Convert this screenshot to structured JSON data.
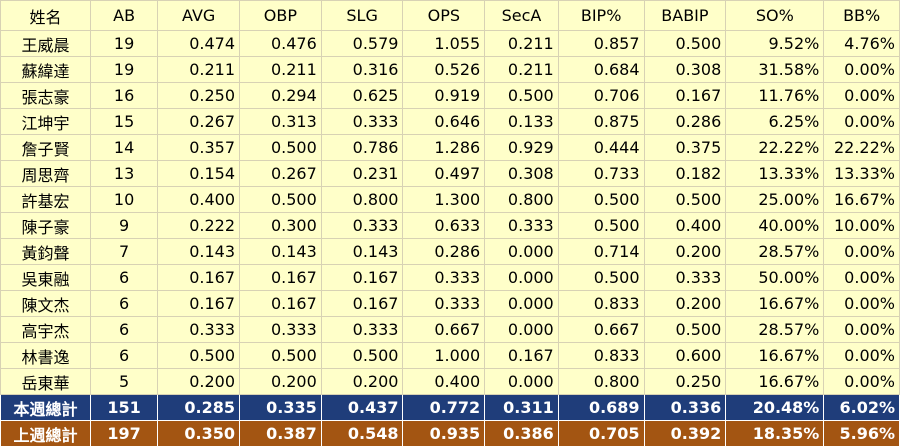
{
  "columns": [
    "姓名",
    "AB",
    "AVG",
    "OBP",
    "SLG",
    "OPS",
    "SecA",
    "BIP%",
    "BABIP",
    "SO%",
    "BB%"
  ],
  "players": [
    {
      "name": "王威晨",
      "ab": "19",
      "avg": "0.474",
      "obp": "0.476",
      "slg": "0.579",
      "ops": "1.055",
      "seca": "0.211",
      "bip": "0.857",
      "babip": "0.500",
      "so": "9.52%",
      "bb": "4.76%"
    },
    {
      "name": "蘇緯達",
      "ab": "19",
      "avg": "0.211",
      "obp": "0.211",
      "slg": "0.316",
      "ops": "0.526",
      "seca": "0.211",
      "bip": "0.684",
      "babip": "0.308",
      "so": "31.58%",
      "bb": "0.00%"
    },
    {
      "name": "張志豪",
      "ab": "16",
      "avg": "0.250",
      "obp": "0.294",
      "slg": "0.625",
      "ops": "0.919",
      "seca": "0.500",
      "bip": "0.706",
      "babip": "0.167",
      "so": "11.76%",
      "bb": "0.00%"
    },
    {
      "name": "江坤宇",
      "ab": "15",
      "avg": "0.267",
      "obp": "0.313",
      "slg": "0.333",
      "ops": "0.646",
      "seca": "0.133",
      "bip": "0.875",
      "babip": "0.286",
      "so": "6.25%",
      "bb": "0.00%"
    },
    {
      "name": "詹子賢",
      "ab": "14",
      "avg": "0.357",
      "obp": "0.500",
      "slg": "0.786",
      "ops": "1.286",
      "seca": "0.929",
      "bip": "0.444",
      "babip": "0.375",
      "so": "22.22%",
      "bb": "22.22%"
    },
    {
      "name": "周思齊",
      "ab": "13",
      "avg": "0.154",
      "obp": "0.267",
      "slg": "0.231",
      "ops": "0.497",
      "seca": "0.308",
      "bip": "0.733",
      "babip": "0.182",
      "so": "13.33%",
      "bb": "13.33%"
    },
    {
      "name": "許基宏",
      "ab": "10",
      "avg": "0.400",
      "obp": "0.500",
      "slg": "0.800",
      "ops": "1.300",
      "seca": "0.800",
      "bip": "0.500",
      "babip": "0.500",
      "so": "25.00%",
      "bb": "16.67%"
    },
    {
      "name": "陳子豪",
      "ab": "9",
      "avg": "0.222",
      "obp": "0.300",
      "slg": "0.333",
      "ops": "0.633",
      "seca": "0.333",
      "bip": "0.500",
      "babip": "0.400",
      "so": "40.00%",
      "bb": "10.00%"
    },
    {
      "name": "黃鈞聲",
      "ab": "7",
      "avg": "0.143",
      "obp": "0.143",
      "slg": "0.143",
      "ops": "0.286",
      "seca": "0.000",
      "bip": "0.714",
      "babip": "0.200",
      "so": "28.57%",
      "bb": "0.00%"
    },
    {
      "name": "吳東融",
      "ab": "6",
      "avg": "0.167",
      "obp": "0.167",
      "slg": "0.167",
      "ops": "0.333",
      "seca": "0.000",
      "bip": "0.500",
      "babip": "0.333",
      "so": "50.00%",
      "bb": "0.00%"
    },
    {
      "name": "陳文杰",
      "ab": "6",
      "avg": "0.167",
      "obp": "0.167",
      "slg": "0.167",
      "ops": "0.333",
      "seca": "0.000",
      "bip": "0.833",
      "babip": "0.200",
      "so": "16.67%",
      "bb": "0.00%"
    },
    {
      "name": "高宇杰",
      "ab": "6",
      "avg": "0.333",
      "obp": "0.333",
      "slg": "0.333",
      "ops": "0.667",
      "seca": "0.000",
      "bip": "0.667",
      "babip": "0.500",
      "so": "28.57%",
      "bb": "0.00%"
    },
    {
      "name": "林書逸",
      "ab": "6",
      "avg": "0.500",
      "obp": "0.500",
      "slg": "0.500",
      "ops": "1.000",
      "seca": "0.167",
      "bip": "0.833",
      "babip": "0.600",
      "so": "16.67%",
      "bb": "0.00%"
    },
    {
      "name": "岳東華",
      "ab": "5",
      "avg": "0.200",
      "obp": "0.200",
      "slg": "0.200",
      "ops": "0.400",
      "seca": "0.000",
      "bip": "0.800",
      "babip": "0.250",
      "so": "16.67%",
      "bb": "0.00%"
    }
  ],
  "totals": {
    "this_week": {
      "name": "本週總計",
      "ab": "151",
      "avg": "0.285",
      "obp": "0.335",
      "slg": "0.437",
      "ops": "0.772",
      "seca": "0.311",
      "bip": "0.689",
      "babip": "0.336",
      "so": "20.48%",
      "bb": "6.02%"
    },
    "last_week": {
      "name": "上週總計",
      "ab": "197",
      "avg": "0.350",
      "obp": "0.387",
      "slg": "0.548",
      "ops": "0.935",
      "seca": "0.386",
      "bip": "0.705",
      "babip": "0.392",
      "so": "18.35%",
      "bb": "5.96%"
    }
  },
  "colors": {
    "body_background": "#ffffc9",
    "this_week_row": "#1f3d7a",
    "last_week_row": "#a35512",
    "total_text": "#ffffff"
  }
}
